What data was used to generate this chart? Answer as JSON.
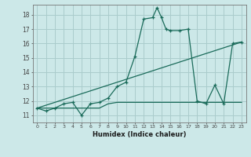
{
  "xlabel": "Humidex (Indice chaleur)",
  "background_color": "#cce8e8",
  "grid_color": "#aacccc",
  "line_color": "#1a6b5a",
  "xlim": [
    -0.5,
    23.5
  ],
  "ylim": [
    10.5,
    18.7
  ],
  "yticks": [
    11,
    12,
    13,
    14,
    15,
    16,
    17,
    18
  ],
  "xticks": [
    0,
    1,
    2,
    3,
    4,
    5,
    6,
    7,
    8,
    9,
    10,
    11,
    12,
    13,
    14,
    15,
    16,
    17,
    18,
    19,
    20,
    21,
    22,
    23
  ],
  "series1_x": [
    0,
    1,
    2,
    3,
    4,
    5,
    6,
    7,
    8,
    9,
    10,
    11,
    12,
    13,
    13.5,
    14,
    14.5,
    15,
    16,
    17,
    18,
    19,
    20,
    21,
    22,
    23
  ],
  "series1_y": [
    11.5,
    11.3,
    11.5,
    11.8,
    11.9,
    11.0,
    11.8,
    11.9,
    12.2,
    13.0,
    13.3,
    15.1,
    17.7,
    17.8,
    18.5,
    17.8,
    17.0,
    16.9,
    16.9,
    17.0,
    12.0,
    11.8,
    13.1,
    11.8,
    16.0,
    16.1
  ],
  "series2_x": [
    0,
    4,
    5,
    6,
    7,
    8,
    9,
    10,
    11,
    12,
    13,
    14,
    15,
    16,
    17,
    18,
    19,
    20,
    21,
    22,
    23
  ],
  "series2_y": [
    11.5,
    11.5,
    11.5,
    11.5,
    11.5,
    11.8,
    11.9,
    11.9,
    11.9,
    11.9,
    11.9,
    11.9,
    11.9,
    11.9,
    11.9,
    11.9,
    11.9,
    11.9,
    11.9,
    11.9,
    11.9
  ],
  "series3_x": [
    0,
    23
  ],
  "series3_y": [
    11.5,
    16.1
  ]
}
